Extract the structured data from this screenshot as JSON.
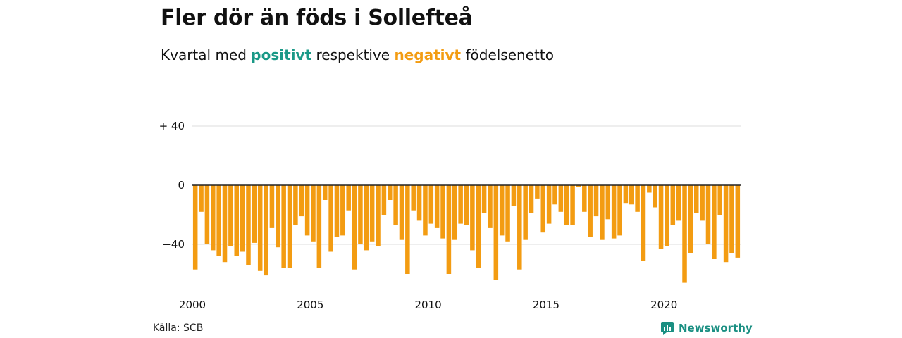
{
  "header": {
    "title": "Fler dör än föds i Sollefteå",
    "subtitle_prefix": "Kvartal med ",
    "subtitle_positive": "positivt",
    "subtitle_middle": " respektive ",
    "subtitle_negative": "negativt",
    "subtitle_suffix": " födelsenetto"
  },
  "footer": {
    "source": "Källa: SCB",
    "brand": "Newsworthy"
  },
  "colors": {
    "positive": "#1a9987",
    "negative": "#f39c12",
    "grid": "#dddddd",
    "zero_line": "#222222"
  },
  "chart_data": {
    "type": "bar",
    "title": "Fler dör än föds i Sollefteå",
    "subtitle": "Kvartal med positivt respektive negativt födelsenetto",
    "xlabel": "",
    "ylabel": "",
    "ylim": [
      -70,
      45
    ],
    "y_ticks": [
      {
        "value": 40,
        "label": "+ 40"
      },
      {
        "value": 0,
        "label": "0"
      },
      {
        "value": -40,
        "label": "−40"
      }
    ],
    "x_ticks": [
      {
        "value": 2000,
        "label": "2000"
      },
      {
        "value": 2005,
        "label": "2005"
      },
      {
        "value": 2010,
        "label": "2010"
      },
      {
        "value": 2015,
        "label": "2015"
      },
      {
        "value": 2020,
        "label": "2020"
      }
    ],
    "grid": true,
    "legend": "none",
    "series": [
      {
        "start_year": 2000,
        "start_quarter": 1,
        "values": [
          -57,
          -18,
          -40,
          -44,
          -48,
          -52,
          -41,
          -48,
          -45,
          -54,
          -39,
          -58,
          -61,
          -29,
          -42,
          -56,
          -56,
          -27,
          -21,
          -34,
          -38,
          -56,
          -10,
          -45,
          -35,
          -34,
          -17,
          -57,
          -40,
          -44,
          -38,
          -41,
          -20,
          -10,
          -27,
          -37,
          -60,
          -17,
          -24,
          -34,
          -26,
          -29,
          -36,
          -60,
          -37,
          -26,
          -27,
          -44,
          -56,
          -19,
          -29,
          -64,
          -34,
          -38,
          -14,
          -57,
          -37,
          -19,
          -9,
          -32,
          -26,
          -13,
          -18,
          -27,
          -27,
          -1,
          -18,
          -35,
          -21,
          -37,
          -23,
          -36,
          -34,
          -12,
          -13,
          -18,
          -51,
          -5,
          -15,
          -43,
          -41,
          -27,
          -24,
          -66,
          -46,
          -19,
          -24,
          -40,
          -50,
          -20,
          -52,
          -46,
          -49
        ]
      }
    ]
  }
}
